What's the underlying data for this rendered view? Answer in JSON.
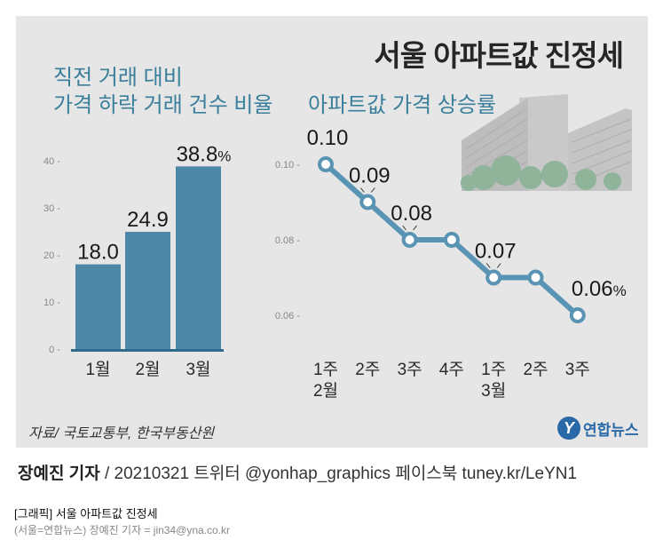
{
  "title": "서울 아파트값 진정세",
  "left_chart_title": [
    "직전 거래 대비",
    "가격 하락 거래 건수 비율"
  ],
  "right_chart_title": "아파트값 가격 상승률",
  "source": "자료/ 국토교통부, 한국부동산원",
  "logo": {
    "mark": "Y",
    "text": "연합뉴스"
  },
  "byline": {
    "author": "장예진 기자",
    "rest": " / 20210321 트위터 @yonhap_graphics  페이스북 tuney.kr/LeYN1"
  },
  "caption": {
    "title": "[그래픽] 서울 아파트값 진정세",
    "credit": "(서울=연합뉴스) 장예진 기자 = jin34@yna.co.kr"
  },
  "colors": {
    "bar": "#4d87a7",
    "bar_shadow": "#2f6a8a",
    "line": "#5a94b4",
    "panel": "#e6e6e6"
  },
  "chart_data": [
    {
      "type": "bar",
      "categories": [
        "1월",
        "2월",
        "3월"
      ],
      "values": [
        18.0,
        24.9,
        38.8
      ],
      "value_labels": [
        "18.0",
        "24.9",
        "38.8"
      ],
      "unit": "%",
      "yticks": [
        0,
        10,
        20,
        30,
        40
      ],
      "ylim": [
        0,
        42
      ]
    },
    {
      "type": "line",
      "categories": [
        [
          "1주",
          "2월"
        ],
        [
          "2주"
        ],
        [
          "3주"
        ],
        [
          "4주"
        ],
        [
          "1주",
          "3월"
        ],
        [
          "2주"
        ],
        [
          "3주"
        ]
      ],
      "values": [
        0.1,
        0.09,
        0.08,
        0.08,
        0.07,
        0.07,
        0.06
      ],
      "value_labels": [
        "0.10",
        "0.09",
        "0.08",
        "",
        "0.07",
        "",
        "0.06"
      ],
      "unit": "%",
      "yticks": [
        "0.10",
        "0.08",
        "0.06"
      ],
      "ylim": [
        0.06,
        0.1
      ]
    }
  ]
}
